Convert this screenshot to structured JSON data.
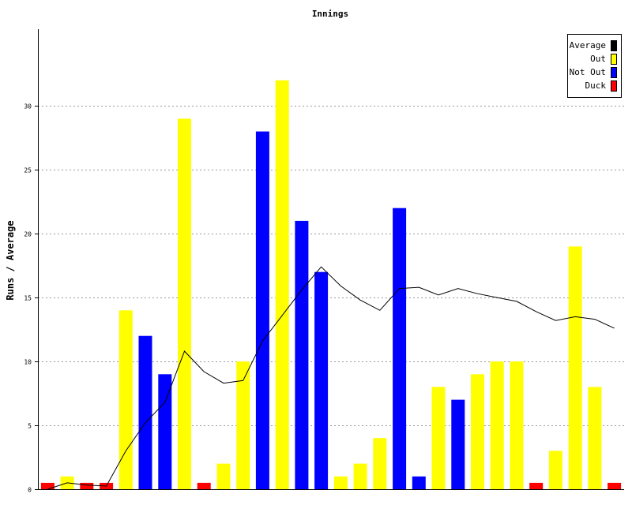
{
  "chart_data": {
    "type": "bar",
    "title": "Innings",
    "ylabel": "Runs / Average",
    "xlabel": "",
    "ylim": [
      0,
      36
    ],
    "yticks": [
      0,
      5,
      10,
      15,
      20,
      25,
      30
    ],
    "grid": true,
    "legend_position": "top-right",
    "series": [
      {
        "name": "Average",
        "color": "#000000"
      },
      {
        "name": "Out",
        "color": "#ffff00"
      },
      {
        "name": "Not Out",
        "color": "#0000ff"
      },
      {
        "name": "Duck",
        "color": "#ff0000"
      }
    ],
    "innings": [
      {
        "runs": 0,
        "type": "Duck"
      },
      {
        "runs": 1,
        "type": "Out"
      },
      {
        "runs": 0,
        "type": "Duck"
      },
      {
        "runs": 0,
        "type": "Duck"
      },
      {
        "runs": 14,
        "type": "Out"
      },
      {
        "runs": 12,
        "type": "Not Out"
      },
      {
        "runs": 9,
        "type": "Not Out"
      },
      {
        "runs": 29,
        "type": "Out"
      },
      {
        "runs": 0,
        "type": "Duck"
      },
      {
        "runs": 2,
        "type": "Out"
      },
      {
        "runs": 10,
        "type": "Out"
      },
      {
        "runs": 28,
        "type": "Not Out"
      },
      {
        "runs": 32,
        "type": "Out"
      },
      {
        "runs": 21,
        "type": "Not Out"
      },
      {
        "runs": 17,
        "type": "Not Out"
      },
      {
        "runs": 1,
        "type": "Out"
      },
      {
        "runs": 2,
        "type": "Out"
      },
      {
        "runs": 4,
        "type": "Out"
      },
      {
        "runs": 22,
        "type": "Not Out"
      },
      {
        "runs": 1,
        "type": "Not Out"
      },
      {
        "runs": 8,
        "type": "Out"
      },
      {
        "runs": 7,
        "type": "Not Out"
      },
      {
        "runs": 9,
        "type": "Out"
      },
      {
        "runs": 10,
        "type": "Out"
      },
      {
        "runs": 10,
        "type": "Out"
      },
      {
        "runs": 0,
        "type": "Duck"
      },
      {
        "runs": 3,
        "type": "Out"
      },
      {
        "runs": 19,
        "type": "Out"
      },
      {
        "runs": 8,
        "type": "Out"
      },
      {
        "runs": 0,
        "type": "Duck"
      }
    ],
    "average": [
      0,
      0.5,
      0.33,
      0.25,
      3,
      5.2,
      6.8,
      10.8,
      9.2,
      8.3,
      8.5,
      11.6,
      13.6,
      15.6,
      17.4,
      15.9,
      14.8,
      14.0,
      15.7,
      15.8,
      15.2,
      15.7,
      15.3,
      15.0,
      14.7,
      13.9,
      13.2,
      13.5,
      13.3,
      12.6
    ]
  }
}
